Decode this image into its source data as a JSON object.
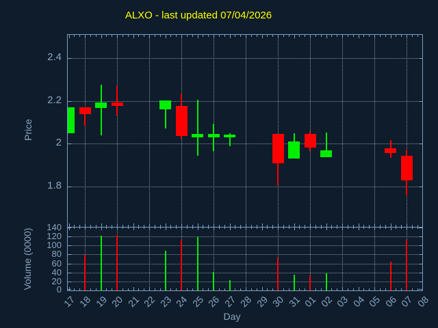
{
  "colors": {
    "background": "#0e1c2b",
    "border": "#7da0c4",
    "grid": "#bcc8d3",
    "label": "#8aa5c0",
    "title": "#ffff00",
    "up": "#00ee00",
    "down": "#ff0000"
  },
  "chart_data": {
    "type": "candlestick_volume",
    "title": "ALXO - last updated 07/04/2026",
    "xlabel": "Day",
    "price_ylabel": "Price",
    "volume_ylabel": "Volume (0000)",
    "price_ticks": [
      {
        "label": "1.8",
        "value": 1.8
      },
      {
        "label": "2",
        "value": 2.0
      },
      {
        "label": "2.2",
        "value": 2.2
      },
      {
        "label": "2.4",
        "value": 2.4
      }
    ],
    "price_range": [
      1.604,
      2.509
    ],
    "volume_ticks": [
      0,
      20,
      40,
      60,
      80,
      100,
      120,
      140
    ],
    "volume_range": [
      0,
      140
    ],
    "x_labels": [
      "17",
      "18",
      "19",
      "20",
      "21",
      "22",
      "23",
      "24",
      "25",
      "26",
      "27",
      "28",
      "29",
      "30",
      "31",
      "01",
      "02",
      "03",
      "04",
      "05",
      "06",
      "07",
      "08"
    ],
    "gridline_days": [
      "18",
      "20",
      "22",
      "24",
      "26",
      "28",
      "30",
      "01",
      "03",
      "05",
      "07"
    ],
    "grid": true,
    "legend": "none",
    "candles": [
      {
        "day": "17",
        "open": 2.05,
        "high": 2.171,
        "low": 2.05,
        "close": 2.171,
        "volume": 0
      },
      {
        "day": "18",
        "open": 2.171,
        "high": 2.171,
        "low": 2.083,
        "close": 2.139,
        "volume": 79
      },
      {
        "day": "19",
        "open": 2.166,
        "high": 2.275,
        "low": 2.04,
        "close": 2.192,
        "volume": 122
      },
      {
        "day": "20",
        "open": 2.193,
        "high": 2.27,
        "low": 2.133,
        "close": 2.177,
        "volume": 124
      },
      {
        "day": "23",
        "open": 2.16,
        "high": 2.203,
        "low": 2.07,
        "close": 2.203,
        "volume": 89
      },
      {
        "day": "24",
        "open": 2.177,
        "high": 2.234,
        "low": 2.024,
        "close": 2.035,
        "volume": 113
      },
      {
        "day": "25",
        "open": 2.03,
        "high": 2.206,
        "low": 1.944,
        "close": 2.045,
        "volume": 119
      },
      {
        "day": "26",
        "open": 2.03,
        "high": 2.094,
        "low": 1.966,
        "close": 2.045,
        "volume": 41
      },
      {
        "day": "27",
        "open": 2.028,
        "high": 2.049,
        "low": 1.989,
        "close": 2.043,
        "volume": 23
      },
      {
        "day": "30",
        "open": 2.046,
        "high": 2.046,
        "low": 1.806,
        "close": 1.907,
        "volume": 73
      },
      {
        "day": "31",
        "open": 1.93,
        "high": 2.048,
        "low": 1.93,
        "close": 2.009,
        "volume": 35
      },
      {
        "day": "01",
        "open": 2.046,
        "high": 2.058,
        "low": 1.964,
        "close": 1.981,
        "volume": 34
      },
      {
        "day": "02",
        "open": 1.937,
        "high": 2.051,
        "low": 1.937,
        "close": 1.969,
        "volume": 38
      },
      {
        "day": "06",
        "open": 1.979,
        "high": 2.016,
        "low": 1.934,
        "close": 1.956,
        "volume": 64
      },
      {
        "day": "07",
        "open": 1.942,
        "high": 1.973,
        "low": 1.758,
        "close": 1.829,
        "volume": 113
      }
    ]
  }
}
